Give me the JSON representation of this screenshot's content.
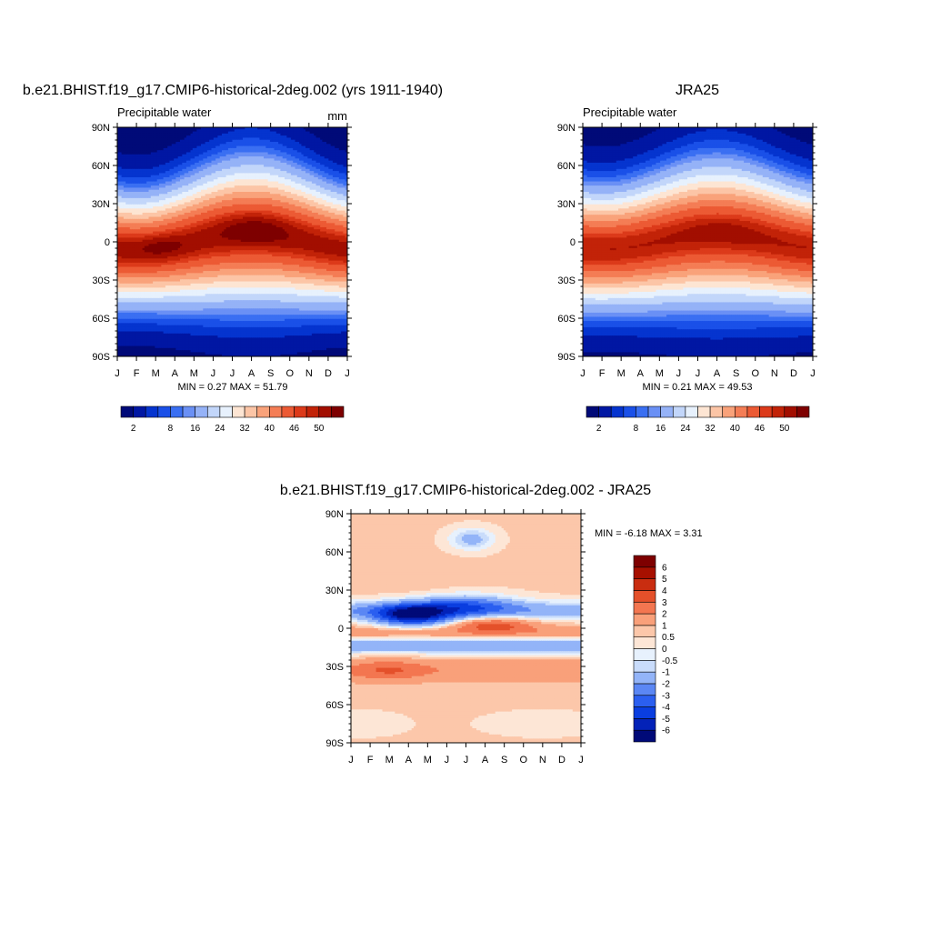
{
  "chart_data": [
    {
      "type": "heatmap",
      "id": "model",
      "title": "b.e21.BHIST.f19_g17.CMIP6-historical-2deg.002 (yrs 1911-1940)",
      "subtitle": "Precipitable water",
      "units": "mm",
      "x": [
        "J",
        "F",
        "M",
        "A",
        "M",
        "J",
        "J",
        "A",
        "S",
        "O",
        "N",
        "D",
        "J"
      ],
      "y": [
        "90N",
        "60N",
        "30N",
        "0",
        "30S",
        "60S",
        "90S"
      ],
      "lat_range": [
        -90,
        90
      ],
      "stats_text": "MIN =   0.27 MAX =  51.79",
      "min": 0.27,
      "max": 51.79,
      "colorbar": {
        "levels": [
          2,
          4,
          6,
          8,
          10,
          12,
          16,
          20,
          24,
          28,
          32,
          36,
          40,
          44,
          46,
          48,
          50
        ],
        "labels": [
          "2",
          "8",
          "16",
          "24",
          "32",
          "40",
          "46",
          "50"
        ],
        "colors": [
          "#000a78",
          "#0017a3",
          "#0534cf",
          "#1a50e8",
          "#3a6ff2",
          "#6a90f5",
          "#95b2f7",
          "#c2d6fa",
          "#e7f1fd",
          "#fde5d3",
          "#fcc5a6",
          "#f9a27a",
          "#f47d55",
          "#ec5a34",
          "#dc3a1a",
          "#c22308",
          "#a20e00",
          "#7e0000"
        ]
      }
    },
    {
      "type": "heatmap",
      "id": "obs",
      "title": "JRA25",
      "subtitle": "Precipitable water",
      "x": [
        "J",
        "F",
        "M",
        "A",
        "M",
        "J",
        "J",
        "A",
        "S",
        "O",
        "N",
        "D",
        "J"
      ],
      "y": [
        "90N",
        "60N",
        "30N",
        "0",
        "30S",
        "60S",
        "90S"
      ],
      "lat_range": [
        -90,
        90
      ],
      "stats_text": "MIN =   0.21 MAX =  49.53",
      "min": 0.21,
      "max": 49.53,
      "colorbar": {
        "levels": [
          2,
          4,
          6,
          8,
          10,
          12,
          16,
          20,
          24,
          28,
          32,
          36,
          40,
          44,
          46,
          48,
          50
        ],
        "labels": [
          "2",
          "8",
          "16",
          "24",
          "32",
          "40",
          "46",
          "50"
        ]
      }
    },
    {
      "type": "heatmap",
      "id": "diff",
      "title": "b.e21.BHIST.f19_g17.CMIP6-historical-2deg.002 - JRA25",
      "x": [
        "J",
        "F",
        "M",
        "A",
        "M",
        "J",
        "J",
        "A",
        "S",
        "O",
        "N",
        "D",
        "J"
      ],
      "y": [
        "90N",
        "60N",
        "30N",
        "0",
        "30S",
        "60S",
        "90S"
      ],
      "lat_range": [
        -90,
        90
      ],
      "stats_text": "MIN =  -6.18 MAX =   3.31",
      "min": -6.18,
      "max": 3.31,
      "colorbar": {
        "levels": [
          -6,
          -5,
          -4,
          -3,
          -2,
          -1,
          -0.5,
          0,
          0.5,
          1,
          2,
          3,
          4,
          5,
          6
        ],
        "labels": [
          "6",
          "5",
          "4",
          "3",
          "2",
          "1",
          "0.5",
          "0",
          "-0.5",
          "-1",
          "-2",
          "-3",
          "-4",
          "-5",
          "-6"
        ],
        "colors": [
          "#000a78",
          "#0322b8",
          "#0a3ee0",
          "#2b5ff0",
          "#5b87f4",
          "#93b4f8",
          "#c9dcfb",
          "#e7f1fd",
          "#fde6d6",
          "#fcc7aa",
          "#f9a07a",
          "#f37650",
          "#e4502a",
          "#c92d10",
          "#a71000",
          "#7e0000"
        ]
      }
    }
  ]
}
